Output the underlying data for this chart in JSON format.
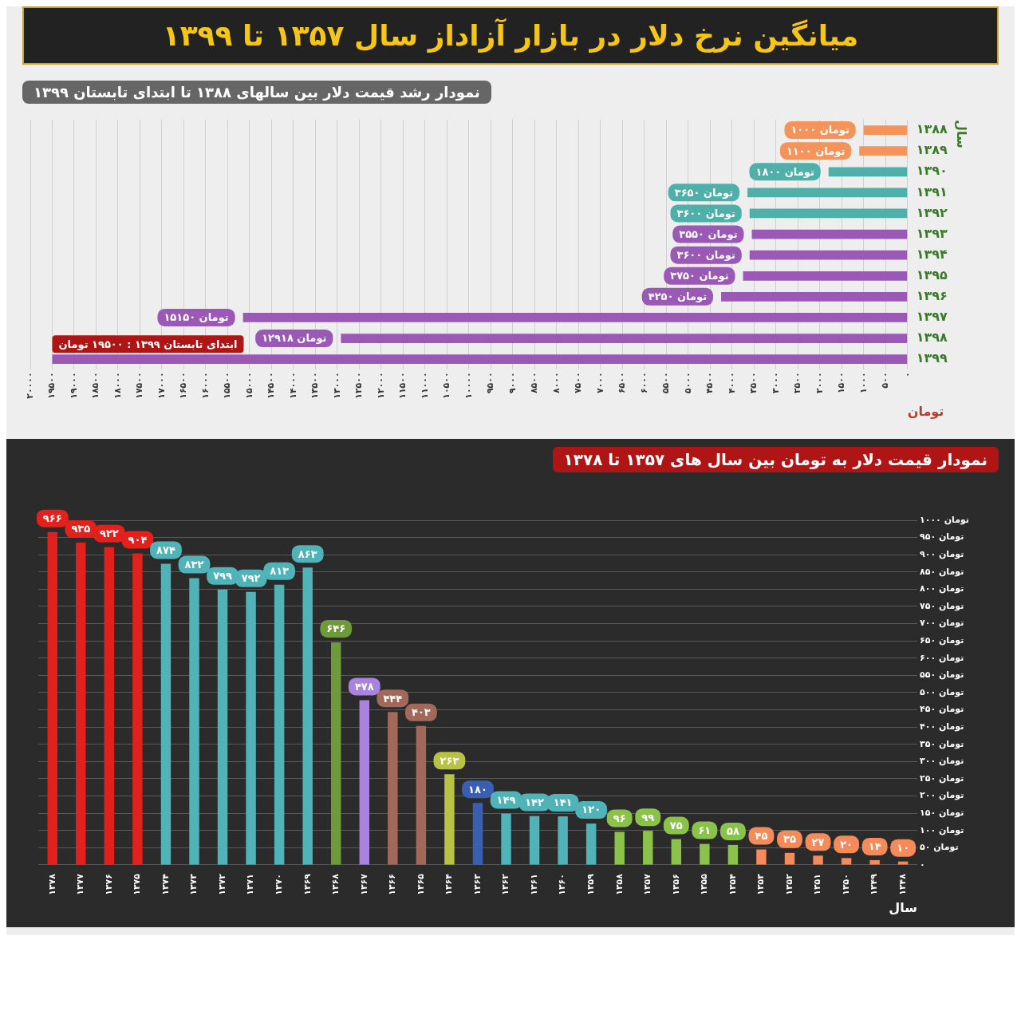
{
  "chart_data": [
    {
      "type": "bar",
      "orientation": "horizontal",
      "title": "میانگین نرخ دلار در بازار آزاداز سال ۱۳۵۷ تا ۱۳۹۹",
      "subtitle": "نمودار رشد قیمت دلار بین سالهای ۱۳۸۸ تا ابتدای تابستان ۱۳۹۹",
      "xlabel": "تومان",
      "ylabel": "سال",
      "categories": [
        "۱۳۸۸",
        "۱۳۸۹",
        "۱۳۹۰",
        "۱۳۹۱",
        "۱۳۹۲",
        "۱۳۹۳",
        "۱۳۹۴",
        "۱۳۹۵",
        "۱۳۹۶",
        "۱۳۹۷",
        "۱۳۹۸",
        "۱۳۹۹"
      ],
      "values": [
        1000,
        1100,
        1800,
        3650,
        3600,
        3550,
        3600,
        3750,
        4250,
        15150,
        12918,
        19500
      ],
      "colors": [
        "#f4935a",
        "#f4935a",
        "#4fb0aa",
        "#4fb0aa",
        "#4fb0aa",
        "#9b59b6",
        "#9b59b6",
        "#9b59b6",
        "#9b59b6",
        "#9b59b6",
        "#9b59b6",
        "#9b59b6"
      ],
      "value_labels": [
        "۱۰۰۰ تومان",
        "۱۱۰۰ تومان",
        "۱۸۰۰ تومان",
        "۳۶۵۰ تومان",
        "۳۶۰۰ تومان",
        "۳۵۵۰ تومان",
        "۳۶۰۰ تومان",
        "۳۷۵۰ تومان",
        "۴۲۵۰ تومان",
        "۱۵۱۵۰ تومان",
        "۱۲۹۱۸ تومان",
        null
      ],
      "annotations": [
        {
          "text": "ابتدای تابستان ۱۳۹۹ : ۱۹۵۰۰ تومان",
          "x": 19500,
          "y": "۱۳۹۹"
        }
      ],
      "xlim": [
        20000,
        0
      ],
      "xticks": [
        {
          "value": 0,
          "label": "۰"
        },
        {
          "value": 500,
          "label": "۵۰۰"
        },
        {
          "value": 1000,
          "label": "۱۰۰۰"
        },
        {
          "value": 1500,
          "label": "۱۵۰۰"
        },
        {
          "value": 2000,
          "label": "۲۰۰۰"
        },
        {
          "value": 2500,
          "label": "۲۵۰۰"
        },
        {
          "value": 3000,
          "label": "۳۰۰۰"
        },
        {
          "value": 3500,
          "label": "۳۵۰۰"
        },
        {
          "value": 4000,
          "label": "۴۰۰۰"
        },
        {
          "value": 4500,
          "label": "۴۵۰۰"
        },
        {
          "value": 5000,
          "label": "۵۰۰۰"
        },
        {
          "value": 5500,
          "label": "۵۵۰۰"
        },
        {
          "value": 6000,
          "label": "۶۰۰۰"
        },
        {
          "value": 6500,
          "label": "۶۵۰۰"
        },
        {
          "value": 7000,
          "label": "۷۰۰۰"
        },
        {
          "value": 7500,
          "label": "۷۵۰۰"
        },
        {
          "value": 8000,
          "label": "۸۰۰۰"
        },
        {
          "value": 8500,
          "label": "۸۵۰۰"
        },
        {
          "value": 9000,
          "label": "۹۰۰۰"
        },
        {
          "value": 9500,
          "label": "۹۵۰۰"
        },
        {
          "value": 10000,
          "label": "۱۰۰۰۰"
        },
        {
          "value": 10500,
          "label": "۱۰۵۰۰"
        },
        {
          "value": 11000,
          "label": "۱۱۰۰۰"
        },
        {
          "value": 11500,
          "label": "۱۱۵۰۰"
        },
        {
          "value": 12000,
          "label": "۱۲۰۰۰"
        },
        {
          "value": 12500,
          "label": "۱۲۵۰۰"
        },
        {
          "value": 13000,
          "label": "۱۳۰۰۰"
        },
        {
          "value": 13500,
          "label": "۱۳۵۰۰"
        },
        {
          "value": 14000,
          "label": "۱۴۰۰۰"
        },
        {
          "value": 14500,
          "label": "۱۴۵۰۰"
        },
        {
          "value": 15000,
          "label": "۱۵۰۰۰"
        },
        {
          "value": 15500,
          "label": "۱۵۵۰۰"
        },
        {
          "value": 16000,
          "label": "۱۶۰۰۰"
        },
        {
          "value": 16500,
          "label": "۱۶۵۰۰"
        },
        {
          "value": 17000,
          "label": "۱۷۰۰۰"
        },
        {
          "value": 17500,
          "label": "۱۷۵۰۰"
        },
        {
          "value": 18000,
          "label": "۱۸۰۰۰"
        },
        {
          "value": 18500,
          "label": "۱۸۵۰۰"
        },
        {
          "value": 19000,
          "label": "۱۹۰۰۰"
        },
        {
          "value": 19500,
          "label": "۱۹۵۰۰"
        },
        {
          "value": 20000,
          "label": "۲۰۰۰۰"
        }
      ],
      "grid": "x",
      "legend": false
    },
    {
      "type": "bar",
      "title": "نمودار قیمت دلار به تومان بین سال های ۱۳۵۷ تا ۱۳۷۸",
      "xlabel": "سال",
      "categories": [
        "۱۳۷۸",
        "۱۳۷۷",
        "۱۳۷۶",
        "۱۳۷۵",
        "۱۳۷۴",
        "۱۳۷۳",
        "۱۳۷۲",
        "۱۳۷۱",
        "۱۳۷۰",
        "۱۳۶۹",
        "۱۳۶۸",
        "۱۳۶۷",
        "۱۳۶۶",
        "۱۳۶۵",
        "۱۳۶۴",
        "۱۳۶۳",
        "۱۳۶۲",
        "۱۳۶۱",
        "۱۳۶۰",
        "۱۳۵۹",
        "۱۳۵۸",
        "۱۳۵۷",
        "۱۳۵۶",
        "۱۳۵۵",
        "۱۳۵۴",
        "۱۳۵۳",
        "۱۳۵۲",
        "۱۳۵۱",
        "۱۳۵۰",
        "۱۳۴۹",
        "۱۳۴۸"
      ],
      "values": [
        966,
        935,
        922,
        904,
        874,
        832,
        799,
        792,
        813,
        863,
        646,
        478,
        444,
        403,
        263,
        180,
        149,
        142,
        141,
        120,
        96,
        99,
        75,
        61,
        58,
        45,
        35,
        27,
        20,
        14,
        10
      ],
      "colors": [
        "#e3211c",
        "#e3211c",
        "#e3211c",
        "#e3211c",
        "#4fb3b8",
        "#4fb3b8",
        "#4fb3b8",
        "#4fb3b8",
        "#4fb3b8",
        "#4fb3b8",
        "#6f9a3a",
        "#a884e0",
        "#a0695a",
        "#a0695a",
        "#b8c244",
        "#3a5fb0",
        "#4fb3b8",
        "#4fb3b8",
        "#4fb3b8",
        "#4fb3b8",
        "#8bc34a",
        "#8bc34a",
        "#8bc34a",
        "#8bc34a",
        "#8bc34a",
        "#f58a5a",
        "#f58a5a",
        "#f58a5a",
        "#f58a5a",
        "#f58a5a",
        "#f58a5a"
      ],
      "value_labels": [
        "۹۶۶",
        "۹۳۵",
        "۹۲۲",
        "۹۰۴",
        "۸۷۴",
        "۸۳۲",
        "۷۹۹",
        "۷۹۲",
        "۸۱۳",
        "۸۶۳",
        "۶۴۶",
        "۴۷۸",
        "۴۴۴",
        "۴۰۳",
        "۲۶۳",
        "۱۸۰",
        "۱۴۹",
        "۱۴۲",
        "۱۴۱",
        "۱۲۰",
        "۹۶",
        "۹۹",
        "۷۵",
        "۶۱",
        "۵۸",
        "۴۵",
        "۳۵",
        "۲۷",
        "۲۰",
        "۱۴",
        "۱۰"
      ],
      "ylim": [
        0,
        1000
      ],
      "yticks": [
        {
          "value": 0,
          "label": "۰"
        },
        {
          "value": 50,
          "label": "۵۰ تومان"
        },
        {
          "value": 100,
          "label": "۱۰۰ تومان"
        },
        {
          "value": 150,
          "label": "۱۵۰ تومان"
        },
        {
          "value": 200,
          "label": "۲۰۰ تومان"
        },
        {
          "value": 250,
          "label": "۲۵۰ تومان"
        },
        {
          "value": 300,
          "label": "۳۰۰ تومان"
        },
        {
          "value": 350,
          "label": "۳۵۰ تومان"
        },
        {
          "value": 400,
          "label": "۴۰۰ تومان"
        },
        {
          "value": 450,
          "label": "۴۵۰ تومان"
        },
        {
          "value": 500,
          "label": "۵۰۰ تومان"
        },
        {
          "value": 550,
          "label": "۵۵۰ تومان"
        },
        {
          "value": 600,
          "label": "۶۰۰ تومان"
        },
        {
          "value": 650,
          "label": "۶۵۰ تومان"
        },
        {
          "value": 700,
          "label": "۷۰۰ تومان"
        },
        {
          "value": 750,
          "label": "۷۵۰ تومان"
        },
        {
          "value": 800,
          "label": "۸۰۰ تومان"
        },
        {
          "value": 850,
          "label": "۸۵۰ تومان"
        },
        {
          "value": 900,
          "label": "۹۰۰ تومان"
        },
        {
          "value": 950,
          "label": "۹۵۰ تومان"
        },
        {
          "value": 1000,
          "label": "۱۰۰۰ تومان"
        }
      ],
      "grid": "y",
      "legend": false
    }
  ]
}
